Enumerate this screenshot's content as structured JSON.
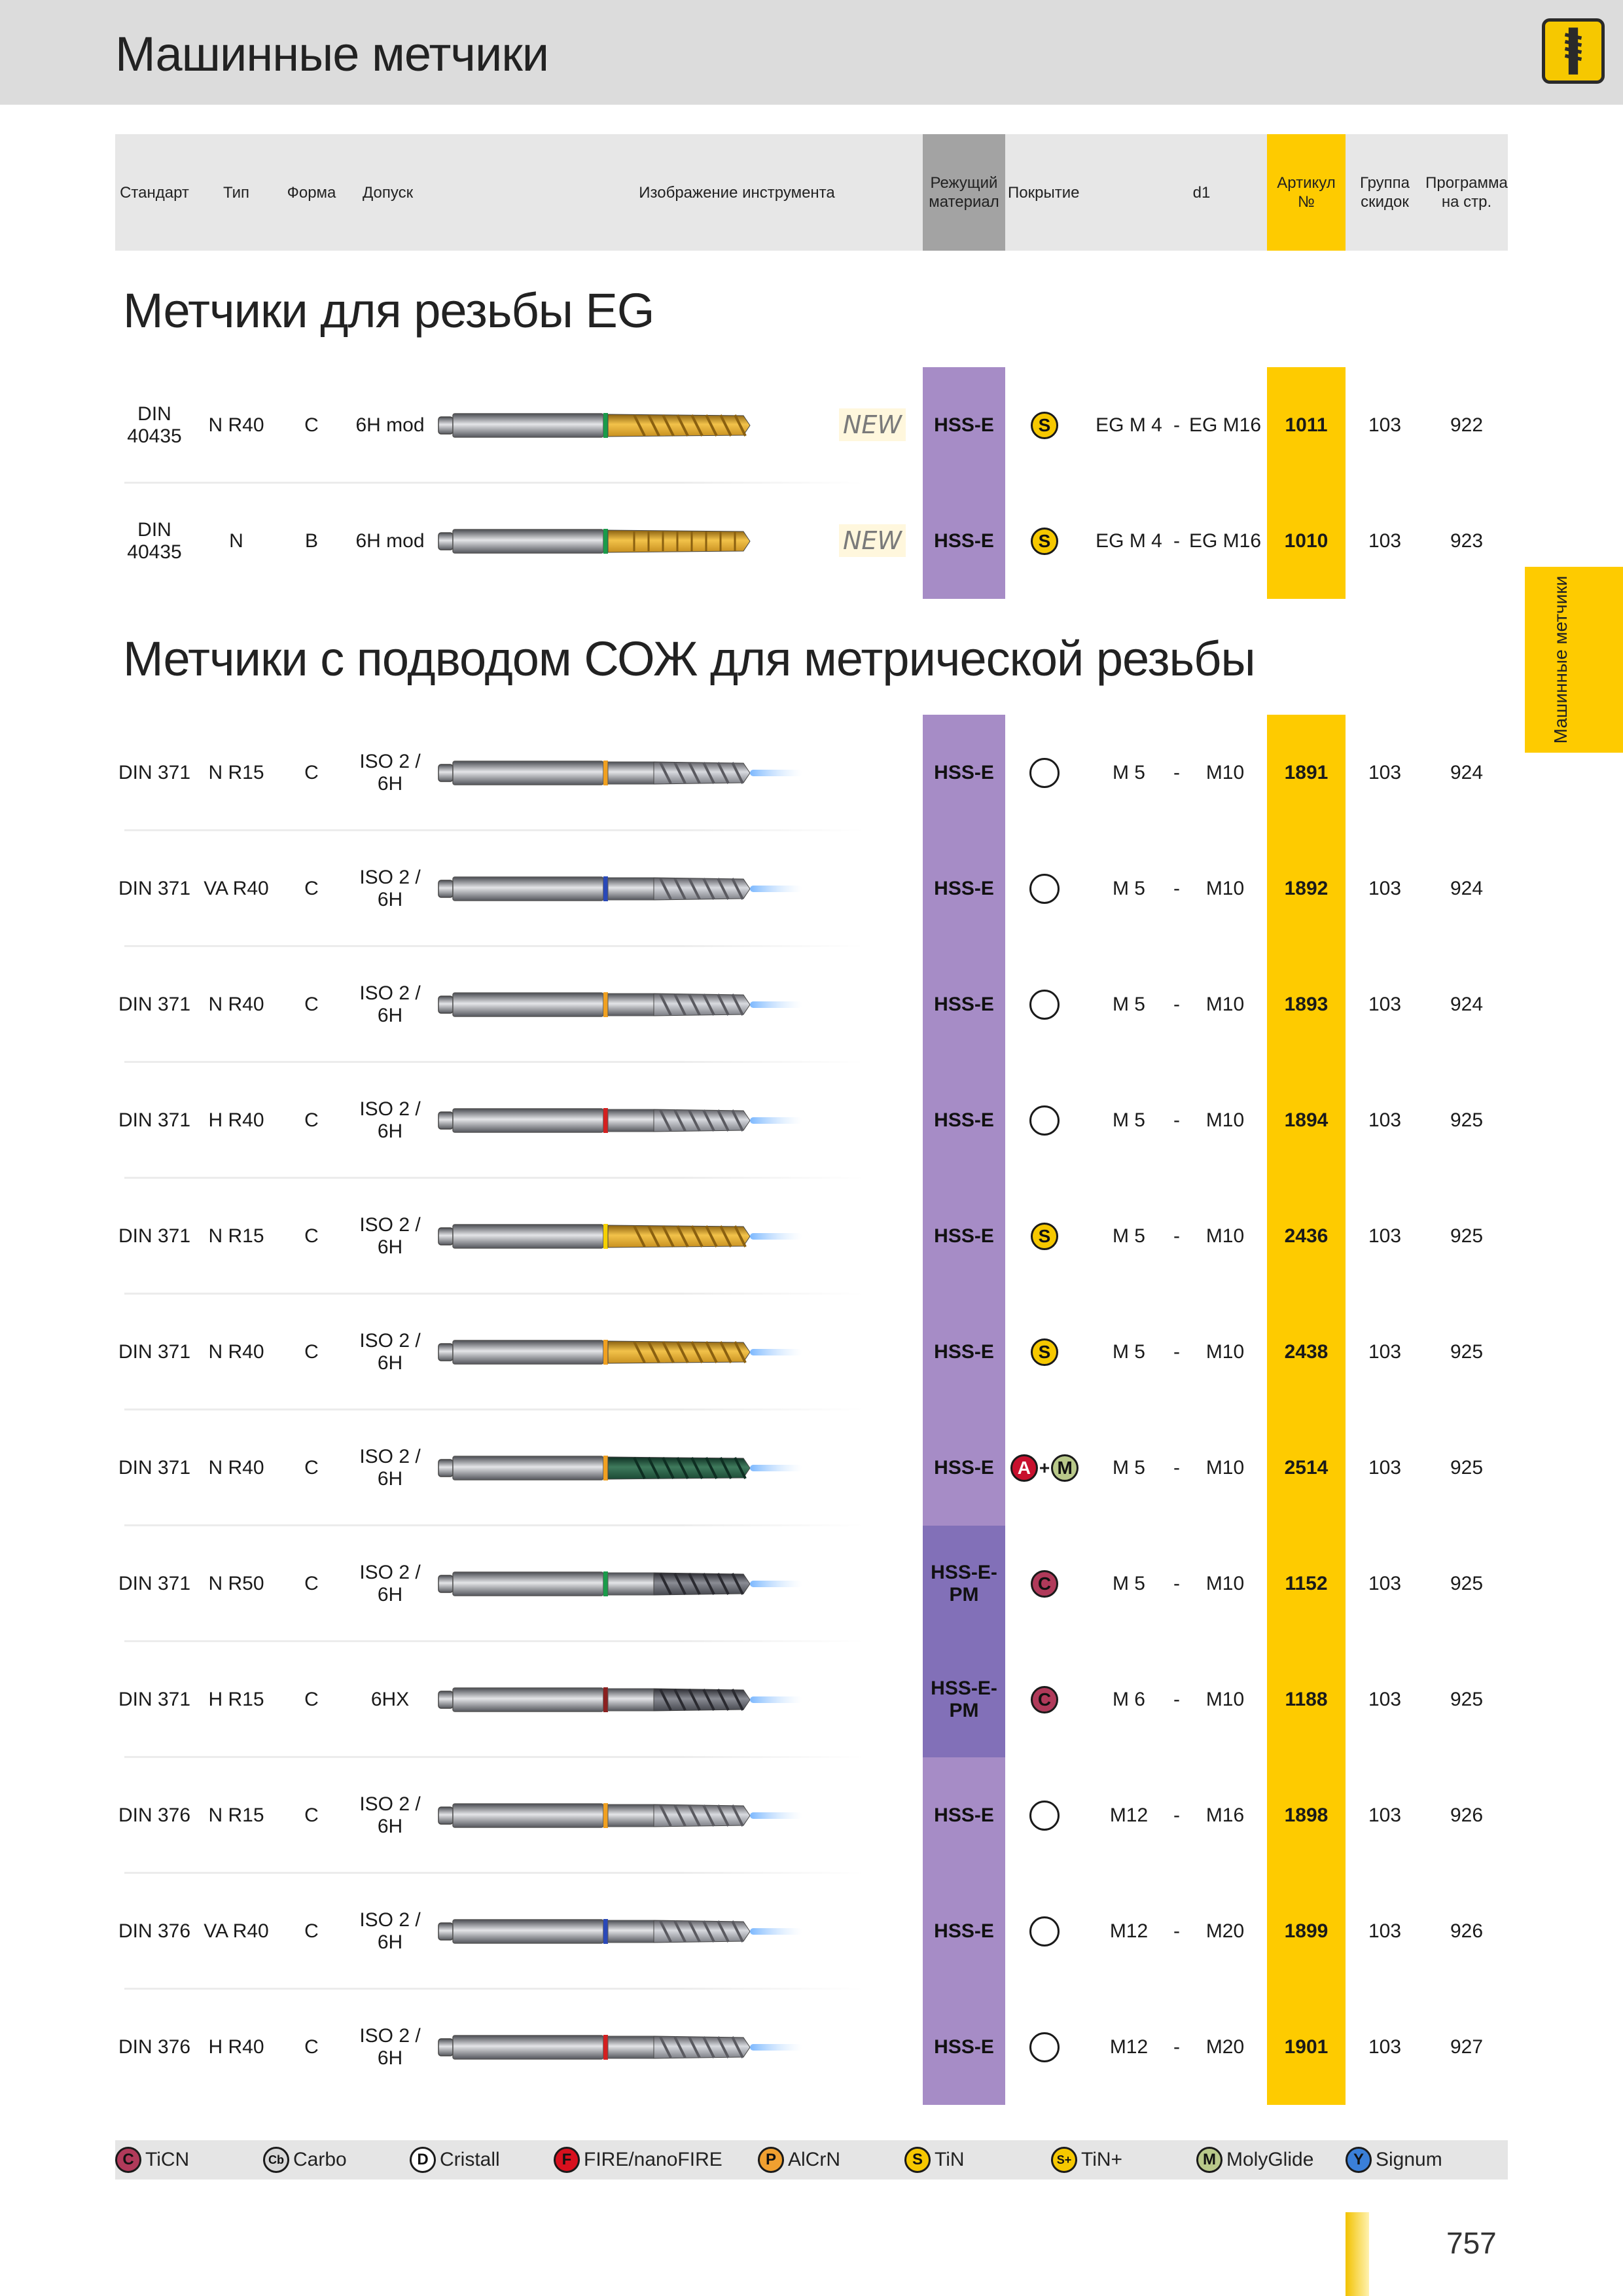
{
  "page": {
    "title": "Машинные метчики",
    "side_tab": "Машинные метчики",
    "page_number": "757"
  },
  "header": {
    "standard": "Стандарт",
    "type": "Тип",
    "form": "Форма",
    "tolerance": "Допуск",
    "image": "Изображение инструмента",
    "material": "Режущий материал",
    "coating": "Покрытие",
    "d1": "d1",
    "article": "Артикул №",
    "discount_group": "Группа скидок",
    "program_page": "Программа на стр."
  },
  "sections": [
    {
      "title": "Метчики для резьбы EG",
      "rows": [
        {
          "standard": "DIN 40435",
          "type": "N R40",
          "form": "C",
          "tolerance": "6H mod",
          "new": "NEW",
          "material": "HSS-E",
          "coating": [
            "S"
          ],
          "d1_from": "EG M 4",
          "dash": "-",
          "d1_to": "EG M16",
          "article": "1011",
          "group": "103",
          "page": "922",
          "tool": {
            "ring": "#1a9b4a",
            "tip": "gold",
            "flute": "spiral",
            "coolant": false
          }
        },
        {
          "standard": "DIN 40435",
          "type": "N",
          "form": "B",
          "tolerance": "6H mod",
          "new": "NEW",
          "material": "HSS-E",
          "coating": [
            "S"
          ],
          "d1_from": "EG M 4",
          "dash": "-",
          "d1_to": "EG M16",
          "article": "1010",
          "group": "103",
          "page": "923",
          "tool": {
            "ring": "#1a9b4a",
            "tip": "gold",
            "flute": "straight",
            "coolant": false
          }
        }
      ]
    },
    {
      "title": "Метчики с подводом СОЖ для метрической резьбы",
      "rows": [
        {
          "standard": "DIN 371",
          "type": "N R15",
          "form": "C",
          "tolerance": "ISO 2 / 6H",
          "material": "HSS-E",
          "coating": [],
          "d1_from": "M 5",
          "dash": "-",
          "d1_to": "M10",
          "article": "1891",
          "group": "103",
          "page": "924",
          "tool": {
            "ring": "#f0a020",
            "tip": "silver",
            "flute": "spiral",
            "coolant": true
          }
        },
        {
          "standard": "DIN 371",
          "type": "VA R40",
          "form": "C",
          "tolerance": "ISO 2 / 6H",
          "material": "HSS-E",
          "coating": [],
          "d1_from": "M 5",
          "dash": "-",
          "d1_to": "M10",
          "article": "1892",
          "group": "103",
          "page": "924",
          "tool": {
            "ring": "#2a49b8",
            "tip": "silver",
            "flute": "spiral",
            "coolant": true
          }
        },
        {
          "standard": "DIN 371",
          "type": "N R40",
          "form": "C",
          "tolerance": "ISO 2 / 6H",
          "material": "HSS-E",
          "coating": [],
          "d1_from": "M 5",
          "dash": "-",
          "d1_to": "M10",
          "article": "1893",
          "group": "103",
          "page": "924",
          "tool": {
            "ring": "#f0a020",
            "tip": "silver",
            "flute": "spiral",
            "coolant": true
          }
        },
        {
          "standard": "DIN 371",
          "type": "H R40",
          "form": "C",
          "tolerance": "ISO 2 / 6H",
          "material": "HSS-E",
          "coating": [],
          "d1_from": "M 5",
          "dash": "-",
          "d1_to": "M10",
          "article": "1894",
          "group": "103",
          "page": "925",
          "tool": {
            "ring": "#d42020",
            "tip": "silver",
            "flute": "spiral",
            "coolant": true
          }
        },
        {
          "standard": "DIN 371",
          "type": "N R15",
          "form": "C",
          "tolerance": "ISO 2 / 6H",
          "material": "HSS-E",
          "coating": [
            "S"
          ],
          "d1_from": "M 5",
          "dash": "-",
          "d1_to": "M10",
          "article": "2436",
          "group": "103",
          "page": "925",
          "tool": {
            "ring": "#f5d000",
            "tip": "gold",
            "flute": "spiral",
            "coolant": true
          }
        },
        {
          "standard": "DIN 371",
          "type": "N R40",
          "form": "C",
          "tolerance": "ISO 2 / 6H",
          "material": "HSS-E",
          "coating": [
            "S"
          ],
          "d1_from": "M 5",
          "dash": "-",
          "d1_to": "M10",
          "article": "2438",
          "group": "103",
          "page": "925",
          "tool": {
            "ring": "#f0a020",
            "tip": "gold",
            "flute": "spiral",
            "coolant": true
          }
        },
        {
          "standard": "DIN 371",
          "type": "N R40",
          "form": "C",
          "tolerance": "ISO 2 / 6H",
          "material": "HSS-E",
          "coating": [
            "A",
            "+",
            "M"
          ],
          "d1_from": "M 5",
          "dash": "-",
          "d1_to": "M10",
          "article": "2514",
          "group": "103",
          "page": "925",
          "tool": {
            "ring": "#f0a020",
            "tip": "green",
            "flute": "spiral",
            "coolant": true
          }
        },
        {
          "standard": "DIN 371",
          "type": "N R50",
          "form": "C",
          "tolerance": "ISO 2 / 6H",
          "material": "HSS-E-PM",
          "coating": [
            "C"
          ],
          "d1_from": "M 5",
          "dash": "-",
          "d1_to": "M10",
          "article": "1152",
          "group": "103",
          "page": "925",
          "tool": {
            "ring": "#1a9b4a",
            "tip": "dark",
            "flute": "spiral",
            "coolant": true
          }
        },
        {
          "standard": "DIN 371",
          "type": "H R15",
          "form": "C",
          "tolerance": "6HX",
          "material": "HSS-E-PM",
          "coating": [
            "C"
          ],
          "d1_from": "M 6",
          "dash": "-",
          "d1_to": "M10",
          "article": "1188",
          "group": "103",
          "page": "925",
          "tool": {
            "ring": "#8b2020",
            "tip": "dark",
            "flute": "spiral",
            "coolant": true
          }
        },
        {
          "standard": "DIN 376",
          "type": "N R15",
          "form": "C",
          "tolerance": "ISO 2 / 6H",
          "material": "HSS-E",
          "coating": [],
          "d1_from": "M12",
          "dash": "-",
          "d1_to": "M16",
          "article": "1898",
          "group": "103",
          "page": "926",
          "tool": {
            "ring": "#f0a020",
            "tip": "silver",
            "flute": "spiral",
            "coolant": true
          }
        },
        {
          "standard": "DIN 376",
          "type": "VA R40",
          "form": "C",
          "tolerance": "ISO 2 / 6H",
          "material": "HSS-E",
          "coating": [],
          "d1_from": "M12",
          "dash": "-",
          "d1_to": "M20",
          "article": "1899",
          "group": "103",
          "page": "926",
          "tool": {
            "ring": "#2a49b8",
            "tip": "silver",
            "flute": "spiral",
            "coolant": true
          }
        },
        {
          "standard": "DIN 376",
          "type": "H R40",
          "form": "C",
          "tolerance": "ISO 2 / 6H",
          "material": "HSS-E",
          "coating": [],
          "d1_from": "M12",
          "dash": "-",
          "d1_to": "M20",
          "article": "1901",
          "group": "103",
          "page": "927",
          "tool": {
            "ring": "#d42020",
            "tip": "silver",
            "flute": "spiral",
            "coolant": true
          }
        }
      ]
    }
  ],
  "coatings": {
    "S": {
      "color": "#f6c800",
      "text_color": "#111111"
    },
    "A": {
      "color": "#c8102e",
      "text_color": "#ffffff"
    },
    "M": {
      "color": "#b9c98a",
      "text_color": "#111111"
    },
    "C": {
      "color": "#b03a5a",
      "text_color": "#111111"
    }
  },
  "legend": [
    {
      "symbol": "C",
      "label": "TiCN",
      "color": "#b03a5a",
      "text_color": "#111111"
    },
    {
      "symbol": "Cb",
      "label": "Carbo",
      "color": "#d8d8d8",
      "text_color": "#111111"
    },
    {
      "symbol": "D",
      "label": "Cristall",
      "color": "#ffffff",
      "text_color": "#111111"
    },
    {
      "symbol": "F",
      "label": "FIRE/nanoFIRE",
      "color": "#d8101e",
      "text_color": "#111111"
    },
    {
      "symbol": "P",
      "label": "AlCrN",
      "color": "#f0a030",
      "text_color": "#111111"
    },
    {
      "symbol": "S",
      "label": "TiN",
      "color": "#f6c800",
      "text_color": "#111111"
    },
    {
      "symbol": "S+",
      "label": "TiN+",
      "color": "#f6c800",
      "text_color": "#111111"
    },
    {
      "symbol": "M",
      "label": "MolyGlide",
      "color": "#b9c98a",
      "text_color": "#111111"
    },
    {
      "symbol": "Y",
      "label": "Signum",
      "color": "#3a7fd8",
      "text_color": "#111111"
    }
  ],
  "colors": {
    "material_column": "#a68cc6",
    "material_pm": "#8270b8",
    "article_column": "#fecb00",
    "header_material": "#a3a3a3"
  }
}
